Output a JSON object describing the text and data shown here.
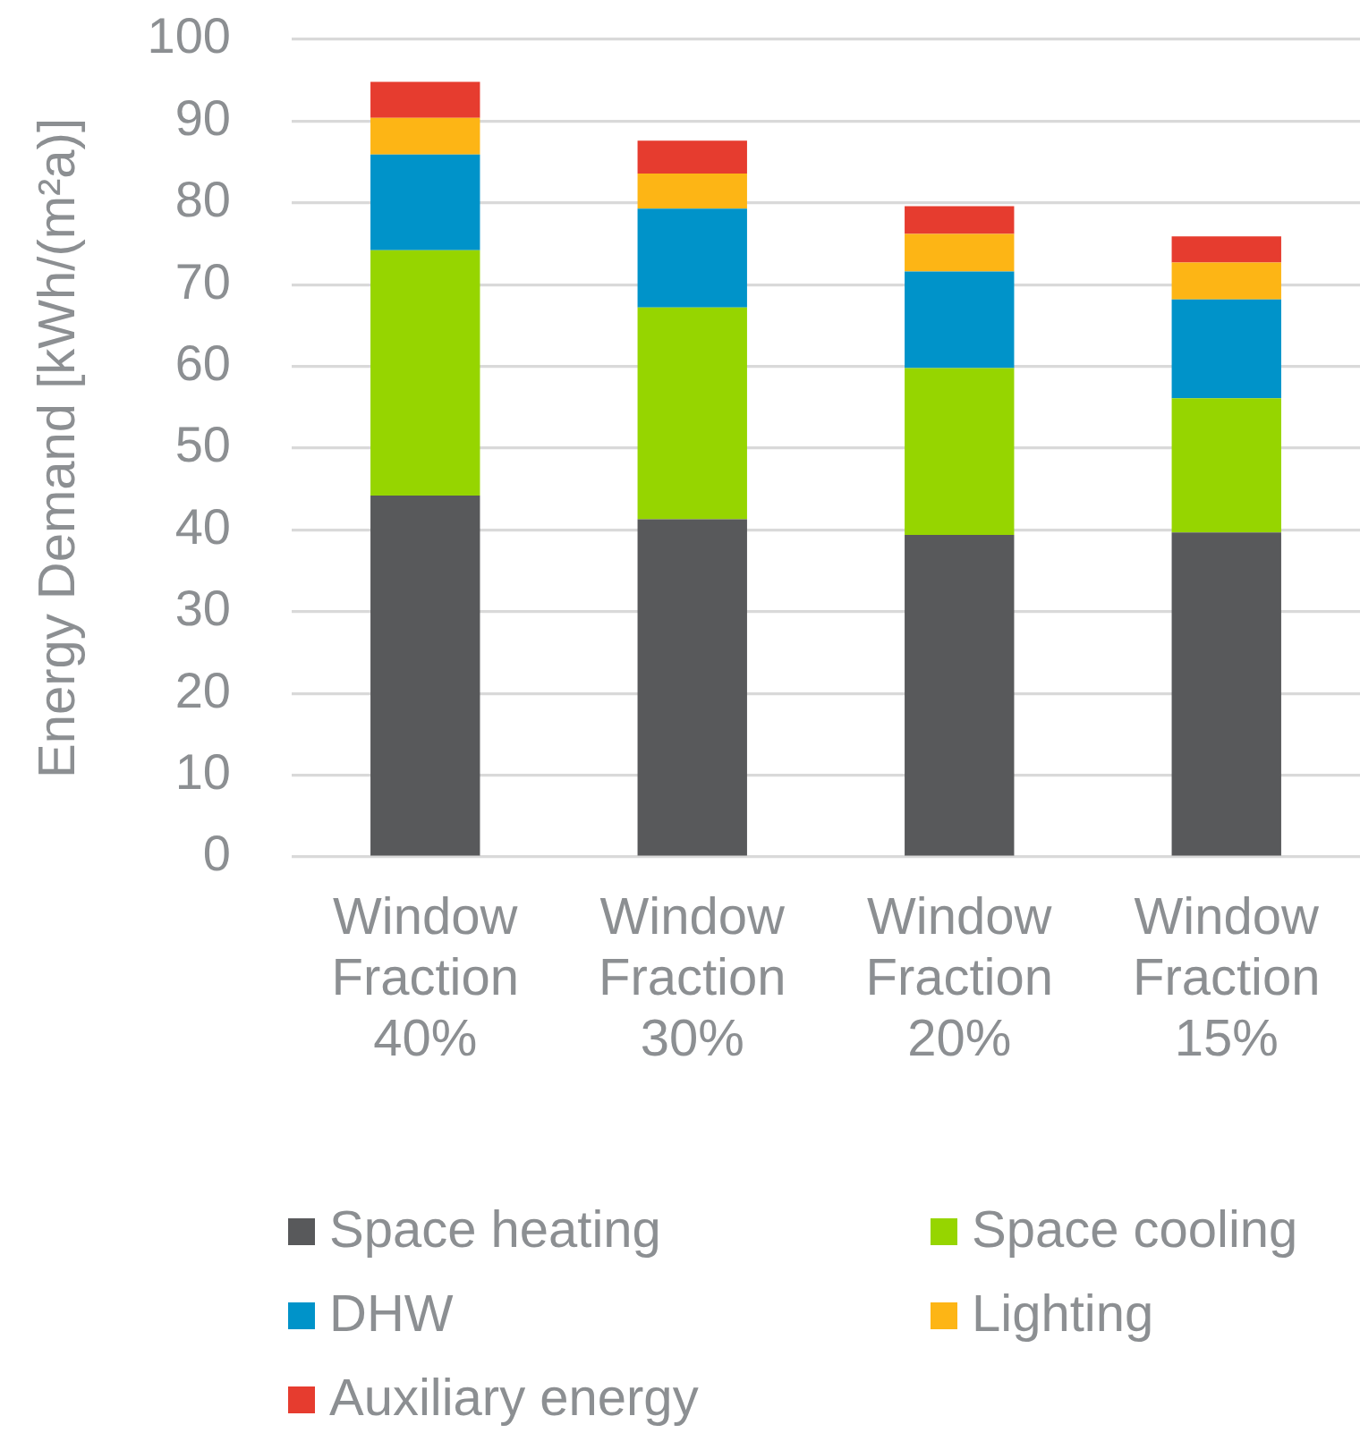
{
  "chart_data": {
    "type": "bar",
    "stacked": true,
    "ylabel": "Energy Demand [kWh/(m²a)]",
    "categories": [
      "Window Fraction 40%",
      "Window Fraction 30%",
      "Window Fraction 20%",
      "Window Fraction 15%"
    ],
    "series": [
      {
        "name": "Space heating",
        "color": "#58595b",
        "values": [
          44.2,
          41.3,
          39.4,
          39.7
        ]
      },
      {
        "name": "Space cooling",
        "color": "#96d500",
        "values": [
          30.0,
          25.9,
          20.4,
          16.4
        ]
      },
      {
        "name": "DHW",
        "color": "#0093c9",
        "values": [
          11.7,
          12.1,
          11.8,
          12.1
        ]
      },
      {
        "name": "Lighting",
        "color": "#fdb515",
        "values": [
          4.5,
          4.3,
          4.6,
          4.5
        ]
      },
      {
        "name": "Auxiliary energy",
        "color": "#e63c2f",
        "values": [
          4.4,
          4.0,
          3.4,
          3.2
        ]
      }
    ],
    "ylim": [
      0,
      100
    ],
    "yticks": [
      0,
      10,
      20,
      30,
      40,
      50,
      60,
      70,
      80,
      90,
      100
    ],
    "grid": "y",
    "legend": "bottom"
  }
}
